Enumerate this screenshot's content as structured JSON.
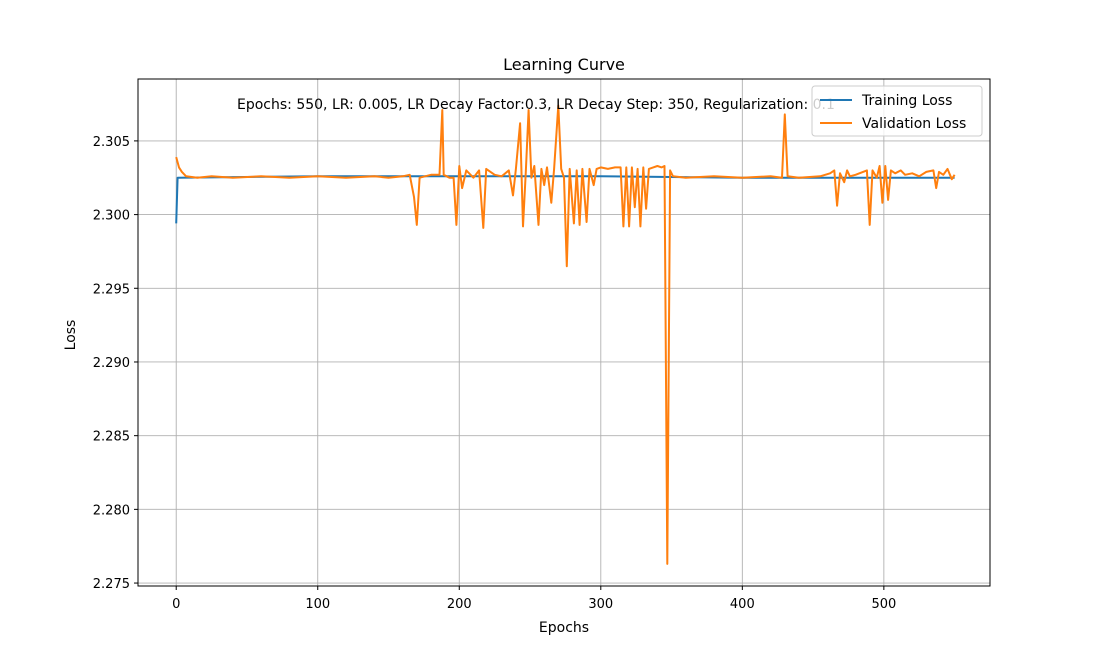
{
  "chart_data": {
    "type": "line",
    "title": "Learning Curve",
    "xlabel": "Epochs",
    "ylabel": "Loss",
    "annotation": "Epochs: 550, LR: 0.005, LR Decay Factor:0.3, LR Decay Step: 350, Regularization: 0.1",
    "xlim": [
      -27,
      575
    ],
    "ylim": [
      2.2748,
      2.3092
    ],
    "xticks": [
      0,
      100,
      200,
      300,
      400,
      500
    ],
    "xtick_labels": [
      "0",
      "100",
      "200",
      "300",
      "400",
      "500"
    ],
    "yticks": [
      2.275,
      2.28,
      2.285,
      2.29,
      2.295,
      2.3,
      2.305
    ],
    "ytick_labels": [
      "2.275",
      "2.280",
      "2.285",
      "2.290",
      "2.295",
      "2.300",
      "2.305"
    ],
    "grid": true,
    "legend_position": "upper right",
    "series": [
      {
        "name": "Training Loss",
        "color": "#1f77b4",
        "points": [
          [
            0,
            2.2994
          ],
          [
            1,
            2.3025
          ],
          [
            100,
            2.3026
          ],
          [
            200,
            2.3026
          ],
          [
            300,
            2.3026
          ],
          [
            400,
            2.3025
          ],
          [
            500,
            2.3025
          ],
          [
            550,
            2.3025
          ]
        ]
      },
      {
        "name": "Validation Loss",
        "color": "#ff7f0e",
        "points": [
          [
            0,
            2.3039
          ],
          [
            2,
            2.3032
          ],
          [
            4,
            2.3029
          ],
          [
            7,
            2.3026
          ],
          [
            15,
            2.3025
          ],
          [
            25,
            2.3026
          ],
          [
            40,
            2.3025
          ],
          [
            60,
            2.3026
          ],
          [
            80,
            2.3025
          ],
          [
            100,
            2.3026
          ],
          [
            120,
            2.3025
          ],
          [
            140,
            2.3026
          ],
          [
            150,
            2.3025
          ],
          [
            160,
            2.3026
          ],
          [
            165,
            2.3027
          ],
          [
            168,
            2.3012
          ],
          [
            170,
            2.2993
          ],
          [
            172,
            2.3025
          ],
          [
            180,
            2.3027
          ],
          [
            186,
            2.3027
          ],
          [
            188,
            2.3071
          ],
          [
            189,
            2.3027
          ],
          [
            193,
            2.3025
          ],
          [
            196,
            2.3025
          ],
          [
            198,
            2.2993
          ],
          [
            200,
            2.3033
          ],
          [
            202,
            2.3018
          ],
          [
            205,
            2.303
          ],
          [
            210,
            2.3025
          ],
          [
            214,
            2.303
          ],
          [
            217,
            2.2991
          ],
          [
            219,
            2.3031
          ],
          [
            225,
            2.3027
          ],
          [
            230,
            2.3026
          ],
          [
            235,
            2.303
          ],
          [
            238,
            2.3013
          ],
          [
            240,
            2.3031
          ],
          [
            243,
            2.3062
          ],
          [
            245,
            2.2992
          ],
          [
            247,
            2.3029
          ],
          [
            249,
            2.3071
          ],
          [
            251,
            2.3025
          ],
          [
            253,
            2.3033
          ],
          [
            256,
            2.2993
          ],
          [
            258,
            2.3031
          ],
          [
            260,
            2.302
          ],
          [
            262,
            2.3032
          ],
          [
            265,
            2.3008
          ],
          [
            267,
            2.3031
          ],
          [
            270,
            2.3074
          ],
          [
            272,
            2.3031
          ],
          [
            274,
            2.3025
          ],
          [
            276,
            2.2965
          ],
          [
            278,
            2.3031
          ],
          [
            281,
            2.2994
          ],
          [
            283,
            2.303
          ],
          [
            285,
            2.2993
          ],
          [
            287,
            2.3031
          ],
          [
            290,
            2.2995
          ],
          [
            292,
            2.3031
          ],
          [
            295,
            2.302
          ],
          [
            297,
            2.3031
          ],
          [
            300,
            2.3032
          ],
          [
            305,
            2.3031
          ],
          [
            310,
            2.3032
          ],
          [
            314,
            2.3032
          ],
          [
            316,
            2.2992
          ],
          [
            318,
            2.3032
          ],
          [
            320,
            2.2992
          ],
          [
            322,
            2.3032
          ],
          [
            324,
            2.3005
          ],
          [
            326,
            2.3031
          ],
          [
            328,
            2.2992
          ],
          [
            330,
            2.3032
          ],
          [
            332,
            2.3004
          ],
          [
            334,
            2.3031
          ],
          [
            337,
            2.3032
          ],
          [
            340,
            2.3033
          ],
          [
            343,
            2.3032
          ],
          [
            345,
            2.3033
          ],
          [
            347,
            2.2763
          ],
          [
            349,
            2.303
          ],
          [
            351,
            2.3026
          ],
          [
            360,
            2.3025
          ],
          [
            380,
            2.3026
          ],
          [
            400,
            2.3025
          ],
          [
            420,
            2.3026
          ],
          [
            428,
            2.3025
          ],
          [
            430,
            2.3068
          ],
          [
            432,
            2.3026
          ],
          [
            440,
            2.3025
          ],
          [
            455,
            2.3026
          ],
          [
            462,
            2.3028
          ],
          [
            465,
            2.303
          ],
          [
            467,
            2.3006
          ],
          [
            469,
            2.3028
          ],
          [
            472,
            2.3022
          ],
          [
            474,
            2.303
          ],
          [
            476,
            2.3026
          ],
          [
            480,
            2.3027
          ],
          [
            488,
            2.303
          ],
          [
            490,
            2.2993
          ],
          [
            492,
            2.303
          ],
          [
            495,
            2.3025
          ],
          [
            497,
            2.3033
          ],
          [
            499,
            2.3008
          ],
          [
            501,
            2.3033
          ],
          [
            503,
            2.301
          ],
          [
            505,
            2.303
          ],
          [
            508,
            2.3028
          ],
          [
            512,
            2.303
          ],
          [
            515,
            2.3027
          ],
          [
            520,
            2.3028
          ],
          [
            525,
            2.3026
          ],
          [
            530,
            2.3029
          ],
          [
            535,
            2.303
          ],
          [
            537,
            2.3018
          ],
          [
            539,
            2.3029
          ],
          [
            542,
            2.3027
          ],
          [
            545,
            2.3031
          ],
          [
            548,
            2.3024
          ],
          [
            550,
            2.3027
          ]
        ]
      }
    ]
  }
}
